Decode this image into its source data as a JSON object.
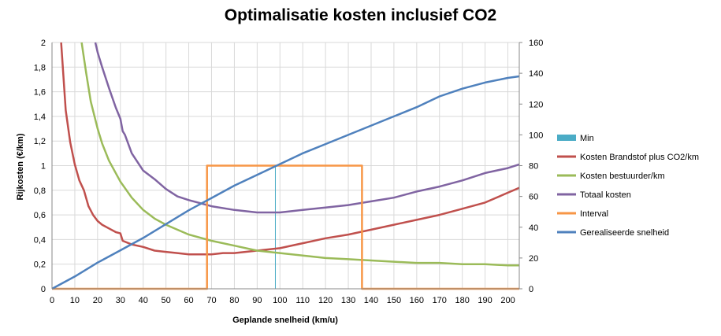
{
  "chart_data": {
    "type": "line",
    "title": "Optimalisatie kosten inclusief CO2",
    "xlabel": "Geplande snelheid (km/u)",
    "ylabel": "Rijkosten (€/km)",
    "xlim": [
      0,
      205
    ],
    "ylim": [
      0,
      2
    ],
    "y2lim": [
      0,
      160
    ],
    "grid": true,
    "legend_position": "right",
    "x_ticks": [
      "0",
      "10",
      "20",
      "30",
      "40",
      "50",
      "60",
      "70",
      "80",
      "90",
      "100",
      "110",
      "120",
      "130",
      "140",
      "150",
      "160",
      "170",
      "180",
      "190",
      "200"
    ],
    "y_ticks": [
      "0",
      "0,2",
      "0,4",
      "0,6",
      "0,8",
      "1",
      "1,2",
      "1,4",
      "1,6",
      "1,8",
      "2"
    ],
    "y2_ticks": [
      "0",
      "20",
      "40",
      "60",
      "80",
      "100",
      "120",
      "140",
      "160"
    ],
    "series": [
      {
        "name": "Min",
        "color": "#4bacc6",
        "type": "bar",
        "axis": "left",
        "x": [
          98
        ],
        "y": [
          1.0
        ]
      },
      {
        "name": "Kosten Brandstof plus CO2/km",
        "color": "#c0504d",
        "axis": "left",
        "x": [
          4,
          6,
          8,
          10,
          12,
          14,
          16,
          18,
          20,
          22,
          25,
          28,
          30,
          31,
          35,
          40,
          45,
          50,
          55,
          60,
          65,
          70,
          75,
          80,
          90,
          100,
          110,
          120,
          130,
          140,
          150,
          160,
          170,
          180,
          190,
          200,
          205
        ],
        "y": [
          2.0,
          1.45,
          1.19,
          1.01,
          0.88,
          0.8,
          0.67,
          0.6,
          0.55,
          0.52,
          0.49,
          0.46,
          0.45,
          0.39,
          0.36,
          0.34,
          0.31,
          0.3,
          0.29,
          0.28,
          0.28,
          0.28,
          0.29,
          0.29,
          0.31,
          0.33,
          0.37,
          0.41,
          0.44,
          0.48,
          0.52,
          0.56,
          0.6,
          0.65,
          0.7,
          0.78,
          0.82
        ]
      },
      {
        "name": "Kosten bestuurder/km",
        "color": "#9bbb59",
        "axis": "left",
        "x": [
          13,
          15,
          17,
          20,
          22,
          25,
          30,
          35,
          40,
          45,
          50,
          60,
          70,
          80,
          90,
          100,
          110,
          120,
          130,
          140,
          150,
          160,
          170,
          180,
          190,
          200,
          205
        ],
        "y": [
          2.0,
          1.75,
          1.52,
          1.3,
          1.18,
          1.04,
          0.87,
          0.74,
          0.64,
          0.57,
          0.52,
          0.44,
          0.39,
          0.35,
          0.31,
          0.29,
          0.27,
          0.25,
          0.24,
          0.23,
          0.22,
          0.21,
          0.21,
          0.2,
          0.2,
          0.19,
          0.19
        ]
      },
      {
        "name": "Totaal kosten",
        "color": "#8064a2",
        "axis": "left",
        "x": [
          19,
          20,
          22,
          25,
          28,
          30,
          31,
          32,
          35,
          40,
          45,
          50,
          55,
          60,
          70,
          80,
          90,
          98,
          100,
          110,
          120,
          130,
          140,
          150,
          160,
          170,
          180,
          190,
          200,
          205
        ],
        "y": [
          2.0,
          1.92,
          1.8,
          1.63,
          1.47,
          1.38,
          1.28,
          1.25,
          1.1,
          0.96,
          0.89,
          0.81,
          0.75,
          0.72,
          0.67,
          0.64,
          0.62,
          0.62,
          0.62,
          0.64,
          0.66,
          0.68,
          0.71,
          0.74,
          0.79,
          0.83,
          0.88,
          0.94,
          0.98,
          1.01
        ]
      },
      {
        "name": "Interval",
        "color": "#f79646",
        "axis": "left",
        "x": [
          0,
          68,
          68,
          136,
          136,
          205
        ],
        "y": [
          0,
          0,
          1.0,
          1.0,
          0,
          0
        ]
      },
      {
        "name": "Gerealiseerde snelheid",
        "color": "#4f81bd",
        "axis": "right",
        "x": [
          0,
          10,
          20,
          30,
          40,
          50,
          60,
          70,
          80,
          90,
          100,
          110,
          120,
          130,
          140,
          150,
          160,
          170,
          180,
          190,
          200,
          205
        ],
        "y": [
          0,
          8,
          17,
          25,
          33,
          42,
          51,
          59,
          67,
          74,
          81,
          88,
          94,
          100,
          106,
          112,
          118,
          125,
          130,
          134,
          137,
          138
        ]
      }
    ]
  }
}
